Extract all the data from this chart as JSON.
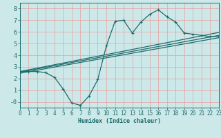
{
  "title": "",
  "xlabel": "Humidex (Indice chaleur)",
  "bg_color": "#cce8e8",
  "grid_color": "#e8a0a0",
  "line_color": "#1a6b6b",
  "x_min": 0,
  "x_max": 23,
  "y_min": -0.5,
  "y_max": 8.5,
  "yticks": [
    0,
    1,
    2,
    3,
    4,
    5,
    6,
    7,
    8
  ],
  "xticks": [
    0,
    1,
    2,
    3,
    4,
    5,
    6,
    7,
    8,
    9,
    10,
    11,
    12,
    13,
    14,
    15,
    16,
    17,
    18,
    19,
    20,
    21,
    22,
    23
  ],
  "curve_x": [
    0,
    1,
    2,
    3,
    4,
    5,
    6,
    7,
    8,
    9,
    10,
    11,
    12,
    13,
    14,
    15,
    16,
    17,
    18,
    19,
    20,
    21,
    22,
    23
  ],
  "curve_y": [
    2.6,
    2.6,
    2.6,
    2.5,
    2.1,
    1.1,
    -0.1,
    -0.3,
    0.5,
    1.9,
    4.8,
    6.9,
    7.0,
    5.9,
    6.85,
    7.5,
    7.9,
    7.3,
    6.85,
    5.9,
    5.8,
    5.7,
    5.6,
    5.6
  ],
  "line1_x": [
    0,
    23
  ],
  "line1_y": [
    2.6,
    5.95
  ],
  "line2_x": [
    0,
    23
  ],
  "line2_y": [
    2.55,
    5.7
  ],
  "line3_x": [
    0,
    23
  ],
  "line3_y": [
    2.45,
    5.5
  ]
}
